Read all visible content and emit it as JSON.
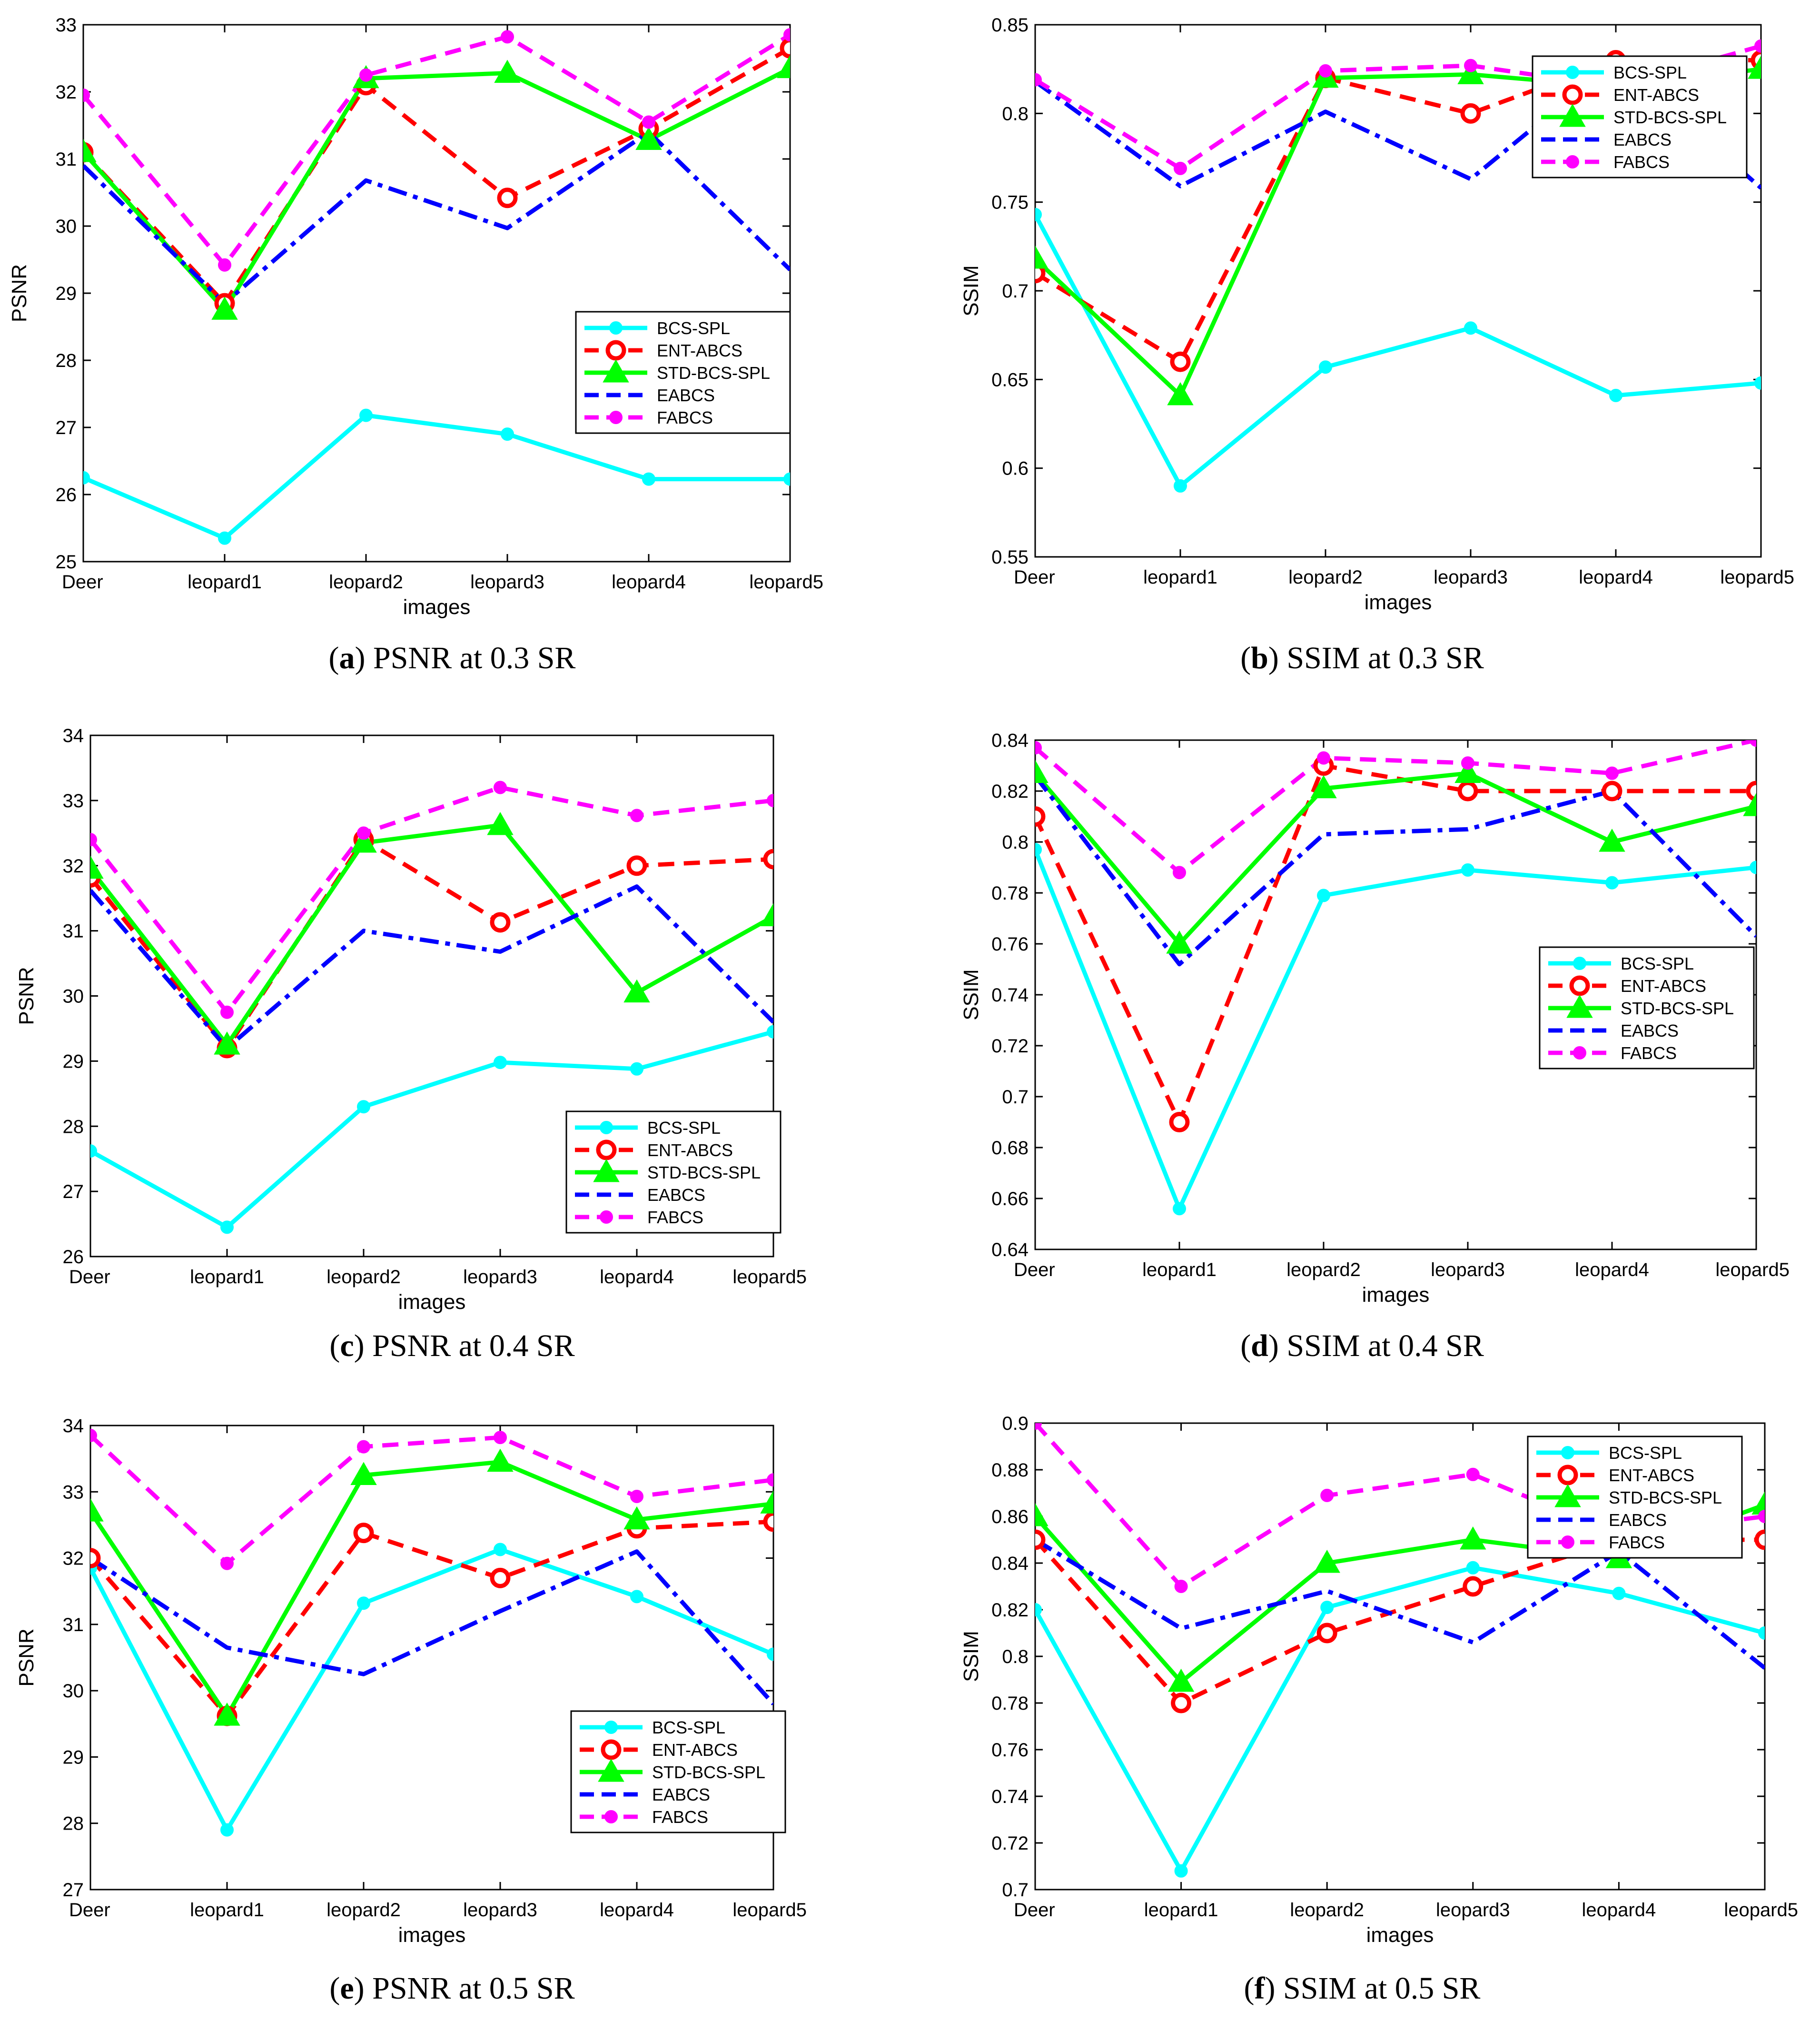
{
  "xlabel": "images",
  "categories": [
    "Deer",
    "leopard1",
    "leopard2",
    "leopard3",
    "leopard4",
    "leopard5"
  ],
  "series_styles": {
    "BCS-SPL": {
      "color": "#00FFFF",
      "marker": "dot"
    },
    "ENT-ABCS": {
      "color": "#FF0000",
      "marker": "circle"
    },
    "STD-BCS-SPL": {
      "color": "#00FF00",
      "marker": "triangle"
    },
    "EABCS": {
      "color": "#0000FF",
      "marker": "none"
    },
    "FABCS": {
      "color": "#FF00FF",
      "marker": "dot"
    }
  },
  "captions": [
    {
      "letter": "a",
      "text": "PSNR at 0.3 SR"
    },
    {
      "letter": "b",
      "text": "SSIM at 0.3 SR"
    },
    {
      "letter": "c",
      "text": "PSNR at 0.4 SR"
    },
    {
      "letter": "d",
      "text": "SSIM at 0.4 SR"
    },
    {
      "letter": "e",
      "text": "PSNR at 0.5 SR"
    },
    {
      "letter": "f",
      "text": "SSIM at 0.5 SR"
    }
  ],
  "chart_data": [
    {
      "type": "line",
      "ylabel": "PSNR",
      "xlabel": "images",
      "categories": [
        "Deer",
        "leopard1",
        "leopard2",
        "leopard3",
        "leopard4",
        "leopard5"
      ],
      "ylim": [
        25,
        33
      ],
      "yticks": [
        "25",
        "26",
        "27",
        "28",
        "29",
        "30",
        "31",
        "32",
        "33"
      ],
      "legend": "middle-right",
      "series": [
        {
          "name": "BCS-SPL",
          "values": [
            26.25,
            25.35,
            27.18,
            26.9,
            26.23,
            26.23
          ]
        },
        {
          "name": "ENT-ABCS",
          "values": [
            31.1,
            28.85,
            32.1,
            30.42,
            31.45,
            32.65
          ]
        },
        {
          "name": "STD-BCS-SPL",
          "values": [
            31.1,
            28.75,
            32.2,
            32.28,
            31.28,
            32.35
          ]
        },
        {
          "name": "EABCS",
          "values": [
            30.9,
            28.85,
            30.68,
            29.97,
            31.4,
            29.35
          ]
        },
        {
          "name": "FABCS",
          "values": [
            31.95,
            29.42,
            32.25,
            32.82,
            31.55,
            32.85
          ]
        }
      ]
    },
    {
      "type": "line",
      "ylabel": "SSIM",
      "xlabel": "images",
      "categories": [
        "Deer",
        "leopard1",
        "leopard2",
        "leopard3",
        "leopard4",
        "leopard5"
      ],
      "ylim": [
        0.55,
        0.85
      ],
      "yticks": [
        "0.55",
        "0.6",
        "0.65",
        "0.7",
        "0.75",
        "0.8",
        "0.85"
      ],
      "legend": "top-right",
      "series": [
        {
          "name": "BCS-SPL",
          "values": [
            0.743,
            0.59,
            0.657,
            0.679,
            0.641,
            0.648
          ]
        },
        {
          "name": "ENT-ABCS",
          "values": [
            0.71,
            0.66,
            0.82,
            0.8,
            0.83,
            0.83
          ]
        },
        {
          "name": "STD-BCS-SPL",
          "values": [
            0.718,
            0.641,
            0.82,
            0.822,
            0.815,
            0.825
          ]
        },
        {
          "name": "EABCS",
          "values": [
            0.818,
            0.759,
            0.801,
            0.763,
            0.83,
            0.758
          ]
        },
        {
          "name": "FABCS",
          "values": [
            0.819,
            0.769,
            0.824,
            0.827,
            0.815,
            0.838
          ]
        }
      ]
    },
    {
      "type": "line",
      "ylabel": "PSNR",
      "xlabel": "images",
      "categories": [
        "Deer",
        "leopard1",
        "leopard2",
        "leopard3",
        "leopard4",
        "leopard5"
      ],
      "ylim": [
        26,
        34
      ],
      "yticks": [
        "26",
        "27",
        "28",
        "29",
        "30",
        "31",
        "32",
        "33",
        "34"
      ],
      "legend": "bottom-right",
      "series": [
        {
          "name": "BCS-SPL",
          "values": [
            27.62,
            26.45,
            28.3,
            28.98,
            28.88,
            29.45
          ]
        },
        {
          "name": "ENT-ABCS",
          "values": [
            31.82,
            29.2,
            32.4,
            31.13,
            32.0,
            32.1
          ]
        },
        {
          "name": "STD-BCS-SPL",
          "values": [
            31.95,
            29.25,
            32.35,
            32.62,
            30.05,
            31.22
          ]
        },
        {
          "name": "EABCS",
          "values": [
            31.62,
            29.2,
            31.0,
            30.68,
            31.68,
            29.6
          ]
        },
        {
          "name": "FABCS",
          "values": [
            32.4,
            29.75,
            32.5,
            33.2,
            32.77,
            33.0
          ]
        }
      ]
    },
    {
      "type": "line",
      "ylabel": "SSIM",
      "xlabel": "images",
      "categories": [
        "Deer",
        "leopard1",
        "leopard2",
        "leopard3",
        "leopard4",
        "leopard5"
      ],
      "ylim": [
        0.64,
        0.84
      ],
      "yticks": [
        "0.64",
        "0.66",
        "0.68",
        "0.7",
        "0.72",
        "0.74",
        "0.76",
        "0.78",
        "0.8",
        "0.82",
        "0.84"
      ],
      "legend": "middle-right",
      "series": [
        {
          "name": "BCS-SPL",
          "values": [
            0.797,
            0.656,
            0.779,
            0.789,
            0.784,
            0.79
          ]
        },
        {
          "name": "ENT-ABCS",
          "values": [
            0.81,
            0.69,
            0.83,
            0.82,
            0.82,
            0.82
          ]
        },
        {
          "name": "STD-BCS-SPL",
          "values": [
            0.827,
            0.76,
            0.821,
            0.827,
            0.8,
            0.814
          ]
        },
        {
          "name": "EABCS",
          "values": [
            0.826,
            0.752,
            0.803,
            0.805,
            0.82,
            0.763
          ]
        },
        {
          "name": "FABCS",
          "values": [
            0.837,
            0.788,
            0.833,
            0.831,
            0.827,
            0.84
          ]
        }
      ]
    },
    {
      "type": "line",
      "ylabel": "PSNR",
      "xlabel": "images",
      "categories": [
        "Deer",
        "leopard1",
        "leopard2",
        "leopard3",
        "leopard4",
        "leopard5"
      ],
      "ylim": [
        27,
        34
      ],
      "yticks": [
        "27",
        "28",
        "29",
        "30",
        "31",
        "32",
        "33",
        "34"
      ],
      "legend": "bottom-right",
      "series": [
        {
          "name": "BCS-SPL",
          "values": [
            31.85,
            27.9,
            31.32,
            32.13,
            31.42,
            30.55
          ]
        },
        {
          "name": "ENT-ABCS",
          "values": [
            32.0,
            29.62,
            32.38,
            31.7,
            32.45,
            32.55
          ]
        },
        {
          "name": "STD-BCS-SPL",
          "values": [
            32.7,
            29.62,
            33.25,
            33.45,
            32.58,
            32.82
          ]
        },
        {
          "name": "EABCS",
          "values": [
            32.0,
            30.65,
            30.25,
            31.2,
            32.1,
            29.8
          ]
        },
        {
          "name": "FABCS",
          "values": [
            33.85,
            31.92,
            33.68,
            33.82,
            32.93,
            33.18
          ]
        }
      ]
    },
    {
      "type": "line",
      "ylabel": "SSIM",
      "xlabel": "images",
      "categories": [
        "Deer",
        "leopard1",
        "leopard2",
        "leopard3",
        "leopard4",
        "leopard5"
      ],
      "ylim": [
        0.7,
        0.9
      ],
      "yticks": [
        "0.7",
        "0.72",
        "0.74",
        "0.76",
        "0.78",
        "0.8",
        "0.82",
        "0.84",
        "0.86",
        "0.88",
        "0.9"
      ],
      "legend": "top-right",
      "series": [
        {
          "name": "BCS-SPL",
          "values": [
            0.82,
            0.708,
            0.821,
            0.838,
            0.827,
            0.81
          ]
        },
        {
          "name": "ENT-ABCS",
          "values": [
            0.85,
            0.78,
            0.81,
            0.83,
            0.85,
            0.85
          ]
        },
        {
          "name": "STD-BCS-SPL",
          "values": [
            0.86,
            0.789,
            0.84,
            0.85,
            0.842,
            0.865
          ]
        },
        {
          "name": "EABCS",
          "values": [
            0.85,
            0.812,
            0.828,
            0.806,
            0.845,
            0.795
          ]
        },
        {
          "name": "FABCS",
          "values": [
            0.9,
            0.83,
            0.869,
            0.878,
            0.852,
            0.86
          ]
        }
      ]
    }
  ]
}
